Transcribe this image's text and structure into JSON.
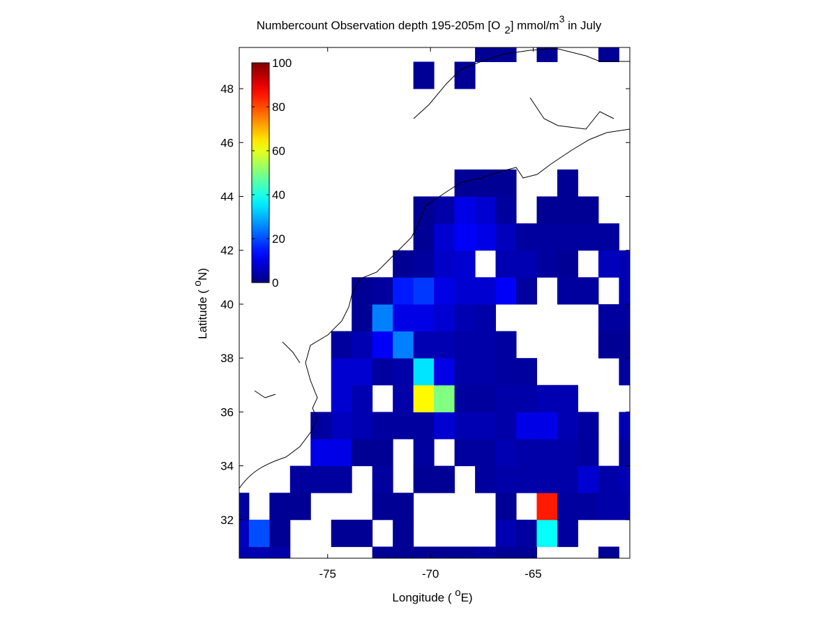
{
  "chart_data": {
    "type": "heatmap",
    "title": [
      "Numbercount Observation depth 195-205m [O",
      "2",
      "] mmol/m",
      "3",
      " in July"
    ],
    "x_label": [
      "Longitude ( ",
      "o",
      "E)"
    ],
    "y_label": [
      "Latitude ( ",
      "o",
      "N)"
    ],
    "x": [
      -79.33,
      -78.33,
      -77.33,
      -76.33,
      -75.33,
      -74.33,
      -73.33,
      -72.33,
      -71.33,
      -70.33,
      -69.33,
      -68.33,
      -67.33,
      -66.33,
      -65.33,
      -64.33,
      -63.33,
      -62.33,
      -61.33,
      -60.33
    ],
    "y": [
      30.5,
      31.5,
      32.5,
      33.5,
      34.5,
      35.5,
      36.5,
      37.5,
      38.5,
      39.5,
      40.5,
      41.5,
      42.5,
      43.5,
      44.5,
      45.5,
      46.5,
      47.5,
      48.5,
      49.5
    ],
    "values": [
      [
        5,
        5,
        4,
        null,
        null,
        null,
        null,
        2,
        2,
        2,
        2,
        2,
        3,
        2,
        2,
        null,
        null,
        null,
        2,
        null
      ],
      [
        6,
        20,
        2,
        null,
        null,
        2,
        2,
        null,
        2,
        null,
        null,
        null,
        null,
        5,
        3,
        38,
        3,
        null,
        null,
        null
      ],
      [
        3,
        null,
        2,
        2,
        null,
        null,
        null,
        2,
        2,
        null,
        null,
        null,
        null,
        2,
        null,
        85,
        3,
        3,
        4,
        4
      ],
      [
        null,
        null,
        null,
        3,
        3,
        3,
        null,
        3,
        null,
        2,
        2,
        null,
        3,
        4,
        4,
        4,
        4,
        8,
        4,
        5
      ],
      [
        null,
        null,
        null,
        null,
        10,
        10,
        2,
        2,
        null,
        3,
        null,
        3,
        3,
        5,
        4,
        4,
        4,
        3,
        null,
        3
      ],
      [
        null,
        null,
        null,
        null,
        3,
        6,
        5,
        3,
        3,
        3,
        8,
        5,
        5,
        4,
        10,
        10,
        5,
        3,
        null,
        5
      ],
      [
        null,
        null,
        null,
        null,
        null,
        8,
        5,
        null,
        4,
        63,
        50,
        3,
        3,
        4,
        4,
        5,
        5,
        null,
        null,
        null
      ],
      [
        null,
        null,
        null,
        null,
        null,
        8,
        8,
        3,
        4,
        35,
        10,
        4,
        4,
        3,
        3,
        null,
        null,
        null,
        null,
        3
      ],
      [
        null,
        null,
        null,
        null,
        null,
        3,
        5,
        12,
        25,
        5,
        5,
        4,
        4,
        3,
        null,
        null,
        null,
        null,
        2,
        2
      ],
      [
        null,
        null,
        null,
        null,
        null,
        null,
        2,
        25,
        10,
        10,
        8,
        5,
        4,
        null,
        null,
        null,
        null,
        null,
        3,
        3
      ],
      [
        null,
        null,
        null,
        null,
        null,
        null,
        2,
        3,
        15,
        18,
        10,
        8,
        8,
        12,
        3,
        null,
        3,
        3,
        null,
        5
      ],
      [
        null,
        null,
        null,
        null,
        null,
        null,
        null,
        null,
        2,
        3,
        7,
        8,
        null,
        5,
        5,
        3,
        2,
        null,
        6,
        5
      ],
      [
        null,
        null,
        null,
        null,
        null,
        null,
        null,
        null,
        null,
        2,
        8,
        12,
        10,
        6,
        3,
        3,
        3,
        3,
        3,
        null
      ],
      [
        null,
        null,
        null,
        null,
        null,
        null,
        null,
        null,
        null,
        2,
        4,
        10,
        8,
        3,
        null,
        2,
        2,
        2,
        null,
        null
      ],
      [
        null,
        null,
        null,
        null,
        null,
        null,
        null,
        null,
        null,
        null,
        null,
        2,
        2,
        2,
        null,
        null,
        2,
        null,
        null,
        null
      ],
      [
        null,
        null,
        null,
        null,
        null,
        null,
        null,
        null,
        null,
        null,
        null,
        null,
        null,
        null,
        null,
        null,
        null,
        null,
        null,
        null
      ],
      [
        null,
        null,
        null,
        null,
        null,
        null,
        null,
        null,
        null,
        null,
        null,
        null,
        null,
        null,
        null,
        null,
        null,
        null,
        null,
        null
      ],
      [
        null,
        null,
        null,
        null,
        null,
        null,
        null,
        null,
        null,
        null,
        null,
        null,
        null,
        null,
        null,
        null,
        null,
        null,
        null,
        null
      ],
      [
        null,
        null,
        null,
        null,
        null,
        null,
        null,
        null,
        null,
        2,
        null,
        2,
        null,
        null,
        null,
        null,
        null,
        null,
        null,
        null
      ],
      [
        null,
        null,
        null,
        null,
        null,
        null,
        null,
        null,
        null,
        null,
        null,
        null,
        2,
        2,
        null,
        2,
        null,
        null,
        2,
        null
      ]
    ],
    "xlim": [
      -79.3,
      -60.3
    ],
    "ylim": [
      30.57,
      49.53
    ],
    "xticks": [
      -75,
      -70,
      -65
    ],
    "yticks": [
      32,
      34,
      36,
      38,
      40,
      42,
      44,
      46,
      48
    ],
    "colormap": "jet",
    "clim": [
      0,
      100
    ],
    "cticks": [
      0,
      20,
      40,
      60,
      80,
      100
    ]
  }
}
